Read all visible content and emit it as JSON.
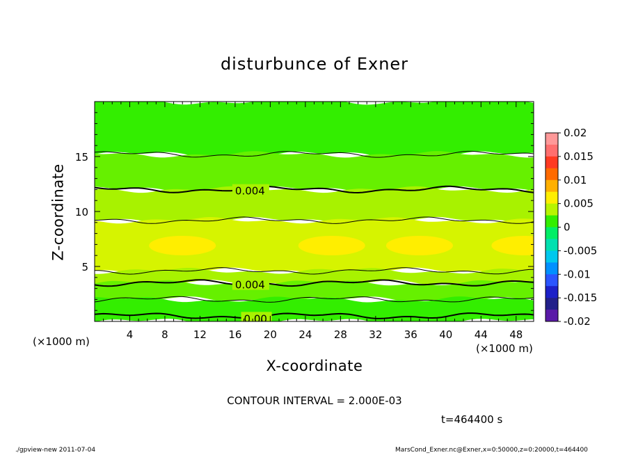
{
  "title": "disturbunce of Exner",
  "chart_data": {
    "type": "heatmap",
    "title": "disturbunce of Exner",
    "xlabel": "X-coordinate",
    "ylabel": "Z-coordinate",
    "x_unit": "(×1000 m)",
    "xlim": [
      0,
      50
    ],
    "ylim": [
      0,
      20
    ],
    "x_ticks": [
      4,
      8,
      12,
      16,
      20,
      24,
      28,
      32,
      36,
      40,
      44,
      48
    ],
    "y_ticks": [
      5,
      10,
      15
    ],
    "colorbar": {
      "ticks": [
        "0.02",
        "0.015",
        "0.01",
        "0.005",
        "0",
        "-0.005",
        "-0.01",
        "-0.015",
        "-0.02"
      ],
      "range": [
        -0.02,
        0.02
      ],
      "levels": [
        {
          "v": 0.0175,
          "color": "#ff9999"
        },
        {
          "v": 0.015,
          "color": "#ff6f6f"
        },
        {
          "v": 0.0125,
          "color": "#ff3a22"
        },
        {
          "v": 0.01,
          "color": "#ff6a00"
        },
        {
          "v": 0.0075,
          "color": "#ffb000"
        },
        {
          "v": 0.005,
          "color": "#ffee00"
        },
        {
          "v": 0.0025,
          "color": "#b8f400"
        },
        {
          "v": 0.0,
          "color": "#33ee00"
        },
        {
          "v": -0.0025,
          "color": "#00ee66"
        },
        {
          "v": -0.005,
          "color": "#00e0b0"
        },
        {
          "v": -0.0075,
          "color": "#00c8ee"
        },
        {
          "v": -0.01,
          "color": "#0090ff"
        },
        {
          "v": -0.0125,
          "color": "#2a55ff"
        },
        {
          "v": -0.015,
          "color": "#1c20c8"
        },
        {
          "v": -0.0175,
          "color": "#22208a"
        },
        {
          "v": -0.02,
          "color": "#5a1aa8"
        }
      ]
    },
    "bands": [
      {
        "z": [
          15.2,
          20
        ],
        "value": 0.001,
        "color": "#33ee00"
      },
      {
        "z": [
          12.0,
          15.2
        ],
        "value": 0.002,
        "color": "#66f000"
      },
      {
        "z": [
          9.2,
          12.0
        ],
        "value": 0.004,
        "color": "#a8f200"
      },
      {
        "z": [
          4.6,
          9.2
        ],
        "value": 0.006,
        "color": "#d6f400"
      },
      {
        "z": [
          3.5,
          4.6
        ],
        "value": 0.004,
        "color": "#a8f200"
      },
      {
        "z": [
          2.0,
          3.5
        ],
        "value": 0.003,
        "color": "#66f000"
      },
      {
        "z": [
          0.0,
          2.0
        ],
        "value": 0.001,
        "color": "#33ee00"
      }
    ],
    "contours": [
      {
        "value": 0.002,
        "z": 15.2,
        "heavy": false,
        "label": ""
      },
      {
        "value": 0.004,
        "z": 12.0,
        "heavy": true,
        "label": "0.004",
        "label_x": 16
      },
      {
        "value": 0.006,
        "z": 9.2,
        "heavy": false,
        "label": ""
      },
      {
        "value": 0.006,
        "z": 4.6,
        "heavy": false,
        "label": ""
      },
      {
        "value": 0.004,
        "z": 3.5,
        "heavy": true,
        "label": "0.004",
        "label_x": 16
      },
      {
        "value": 0.003,
        "z": 2.0,
        "heavy": false,
        "label": ""
      },
      {
        "value": 0.0,
        "z": 0.5,
        "heavy": true,
        "label": "0.00",
        "label_x": 17
      }
    ],
    "yellow_maxima": [
      {
        "x": 10,
        "z": 6.9,
        "value": 0.007
      },
      {
        "x": 27,
        "z": 6.9,
        "value": 0.007
      },
      {
        "x": 37,
        "z": 6.9,
        "value": 0.007
      },
      {
        "x": 49,
        "z": 6.9,
        "value": 0.007
      }
    ]
  },
  "contour_interval": "CONTOUR INTERVAL = 2.000E-03",
  "time_label": "t=464400 s",
  "footer_left": "./gpview-new   2011-07-04",
  "footer_right": "MarsCond_Exner.nc@Exner,x=0:50000,z=0:20000,t=464400"
}
